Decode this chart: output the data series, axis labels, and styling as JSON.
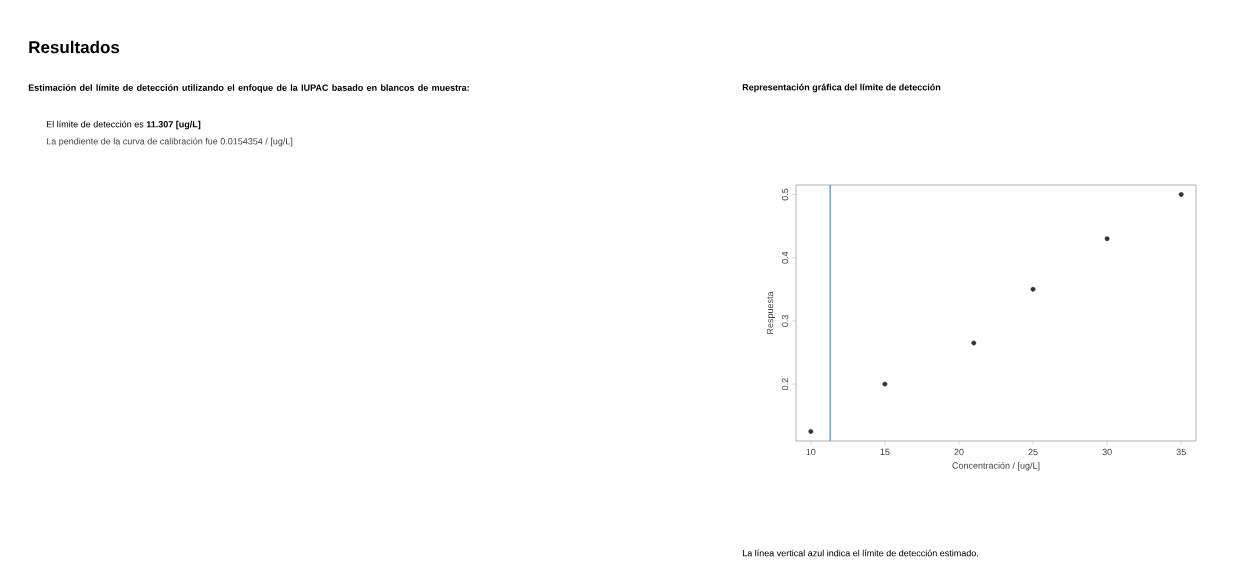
{
  "chart_data": {
    "type": "scatter",
    "title": "Representación gráfica del límite de detección",
    "xlabel": "Concentración / [ug/L]",
    "ylabel": "Respuesta",
    "annotations": [
      "Resultados",
      "Estimación del límite de detección utilizando el enfoque de la IUPAC basado en blancos de muestra:",
      "El límite de detección es **11.307 [ug/L]**",
      "La pendiente de la curva de calibración fue 0.0154354 / [ug/L]",
      "La línea vertical azul indica el límite de detección estimado."
    ],
    "x": [
      10,
      15,
      21,
      25,
      30,
      35
    ],
    "values": [
      0.125,
      0.2,
      0.265,
      0.35,
      0.43,
      0.5
    ],
    "color": "#333333",
    "marker": "circle",
    "xlim": [
      9,
      36
    ],
    "ylim": [
      0.11,
      0.515
    ],
    "xticks": [
      10,
      15,
      20,
      25,
      30,
      35
    ],
    "yticks": [
      0.2,
      0.3,
      0.4,
      0.5
    ],
    "ref_lines": [
      {
        "axis": "x",
        "value": 11.307,
        "color": "#3b8fd6"
      }
    ]
  }
}
